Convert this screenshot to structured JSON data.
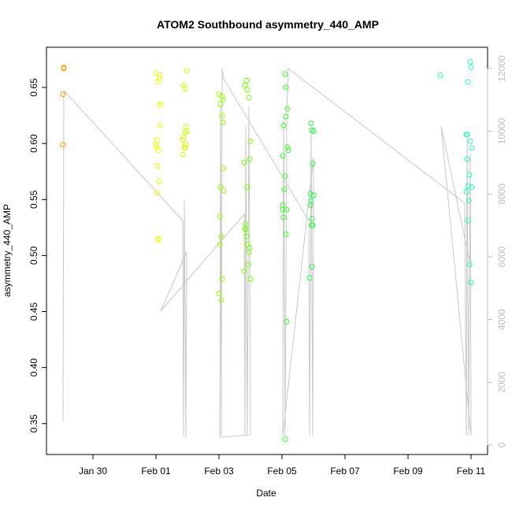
{
  "chart_data": {
    "type": "scatter",
    "title": "ATOM2 Southbound asymmetry_440_AMP",
    "xlabel": "Date",
    "ylabel": "asymmetry_440_AMP",
    "x_ticks": [
      "Jan 30",
      "Feb 01",
      "Feb 03",
      "Feb 05",
      "Feb 07",
      "Feb 09",
      "Feb 11"
    ],
    "x_tick_dates": [
      "01-30 00:00",
      "02-01 00:00",
      "02-03 00:00",
      "02-05 00:00",
      "02-07 00:00",
      "02-09 00:00",
      "02-11 00:00"
    ],
    "xlim": [
      "01-28 12:36",
      "02-11 12:36"
    ],
    "y_ticks": [
      "0.35",
      "0.40",
      "0.45",
      "0.50",
      "0.55",
      "0.60",
      "0.65"
    ],
    "ylim": [
      0.3224,
      0.6859
    ],
    "y2_ticks": [
      "0",
      "2000",
      "4000",
      "6000",
      "8000",
      "10000",
      "12000"
    ],
    "y2lim": [
      -301,
      12678
    ],
    "grid": false,
    "point_groups": [
      {
        "color": "#FF9900",
        "points": [
          [
            "01-29 01:48",
            0.668
          ],
          [
            "01-29 01:48",
            0.667
          ],
          [
            "01-29 01:12",
            0.644
          ],
          [
            "01-29 01:12",
            0.599
          ]
        ]
      },
      {
        "color": "#EEFF00",
        "points": [
          [
            "02-01 00:00",
            0.663
          ],
          [
            "02-01 03:00",
            0.661
          ],
          [
            "02-01 02:24",
            0.658
          ],
          [
            "02-01 01:12",
            0.655
          ],
          [
            "02-01 03:00",
            0.635
          ],
          [
            "02-01 03:36",
            0.635
          ],
          [
            "02-01 03:00",
            0.616
          ],
          [
            "02-01 00:36",
            0.603
          ],
          [
            "02-01 00:00",
            0.599
          ],
          [
            "02-01 00:36",
            0.597
          ],
          [
            "02-01 01:48",
            0.594
          ],
          [
            "02-01 01:12",
            0.58
          ],
          [
            "02-01 02:24",
            0.566
          ],
          [
            "02-01 00:36",
            0.556
          ],
          [
            "02-01 01:48",
            0.515
          ],
          [
            "02-01 01:48",
            0.514
          ]
        ]
      },
      {
        "color": "#D4FF00",
        "points": [
          [
            "02-01 23:24",
            0.665
          ],
          [
            "02-01 21:00",
            0.652
          ],
          [
            "02-01 22:12",
            0.649
          ],
          [
            "02-01 22:48",
            0.615
          ],
          [
            "02-01 23:24",
            0.611
          ],
          [
            "02-01 22:12",
            0.61
          ],
          [
            "02-01 21:00",
            0.606
          ],
          [
            "02-01 20:24",
            0.603
          ],
          [
            "02-01 22:48",
            0.599
          ],
          [
            "02-01 21:36",
            0.597
          ],
          [
            "02-01 22:12",
            0.596
          ],
          [
            "02-01 20:24",
            0.59
          ]
        ]
      },
      {
        "color": "#99FF00",
        "points": [
          [
            "02-03 00:00",
            0.644
          ],
          [
            "02-03 02:24",
            0.642
          ],
          [
            "02-03 03:00",
            0.639
          ],
          [
            "02-03 01:12",
            0.635
          ],
          [
            "02-03 02:24",
            0.625
          ],
          [
            "02-03 03:00",
            0.619
          ],
          [
            "02-03 03:36",
            0.578
          ],
          [
            "02-03 01:12",
            0.561
          ],
          [
            "02-03 03:36",
            0.558
          ],
          [
            "02-03 00:36",
            0.535
          ],
          [
            "02-03 01:48",
            0.517
          ],
          [
            "02-03 00:36",
            0.51
          ],
          [
            "02-03 02:24",
            0.479
          ],
          [
            "02-03 00:00",
            0.466
          ],
          [
            "02-03 01:48",
            0.46
          ]
        ]
      },
      {
        "color": "#77FF00",
        "points": [
          [
            "02-03 21:00",
            0.656
          ],
          [
            "02-03 19:48",
            0.652
          ],
          [
            "02-03 21:36",
            0.648
          ],
          [
            "02-03 22:48",
            0.641
          ],
          [
            "02-04 00:00",
            0.602
          ],
          [
            "02-03 23:24",
            0.586
          ],
          [
            "02-03 19:12",
            0.583
          ],
          [
            "02-03 21:36",
            0.561
          ],
          [
            "02-03 20:24",
            0.528
          ],
          [
            "02-03 19:48",
            0.524
          ],
          [
            "02-03 20:24",
            0.523
          ],
          [
            "02-03 21:00",
            0.517
          ],
          [
            "02-03 21:36",
            0.51
          ],
          [
            "02-03 23:24",
            0.507
          ],
          [
            "02-03 22:48",
            0.503
          ],
          [
            "02-03 22:12",
            0.492
          ],
          [
            "02-03 19:12",
            0.486
          ],
          [
            "02-04 00:00",
            0.479
          ]
        ]
      },
      {
        "color": "#33FF22",
        "points": [
          [
            "02-05 02:24",
            0.662
          ],
          [
            "02-05 03:00",
            0.65
          ],
          [
            "02-05 04:12",
            0.631
          ],
          [
            "02-05 03:00",
            0.624
          ],
          [
            "02-05 01:12",
            0.616
          ],
          [
            "02-05 00:36",
            0.589
          ],
          [
            "02-05 04:12",
            0.597
          ],
          [
            "02-05 04:48",
            0.594
          ],
          [
            "02-05 02:24",
            0.571
          ],
          [
            "02-05 01:48",
            0.559
          ],
          [
            "02-05 00:36",
            0.545
          ],
          [
            "02-05 00:36",
            0.541
          ],
          [
            "02-05 03:36",
            0.541
          ],
          [
            "02-05 01:12",
            0.534
          ],
          [
            "02-05 03:00",
            0.519
          ],
          [
            "02-05 03:36",
            0.441
          ],
          [
            "02-05 02:24",
            0.336
          ]
        ]
      },
      {
        "color": "#22FF44",
        "points": [
          [
            "02-05 22:12",
            0.618
          ],
          [
            "02-05 22:48",
            0.612
          ],
          [
            "02-06 00:00",
            0.611
          ],
          [
            "02-05 23:24",
            0.582
          ],
          [
            "02-05 21:36",
            0.555
          ],
          [
            "02-06 00:00",
            0.554
          ],
          [
            "02-05 22:12",
            0.549
          ],
          [
            "02-05 21:36",
            0.545
          ],
          [
            "02-05 22:48",
            0.533
          ],
          [
            "02-05 23:24",
            0.527
          ],
          [
            "02-05 22:48",
            0.527
          ],
          [
            "02-05 22:48",
            0.49
          ],
          [
            "02-05 21:00",
            0.48
          ]
        ]
      },
      {
        "color": "#22FFBB",
        "points": [
          [
            "02-10 00:36",
            0.661
          ],
          [
            "02-10 23:24",
            0.673
          ],
          [
            "02-11 00:00",
            0.668
          ],
          [
            "02-10 21:36",
            0.655
          ],
          [
            "02-10 20:24",
            0.608
          ],
          [
            "02-10 21:00",
            0.608
          ],
          [
            "02-10 23:24",
            0.602
          ],
          [
            "02-11 00:36",
            0.596
          ],
          [
            "02-10 21:00",
            0.586
          ],
          [
            "02-10 22:48",
            0.572
          ],
          [
            "02-10 21:36",
            0.562
          ],
          [
            "02-11 00:36",
            0.561
          ],
          [
            "02-10 20:24",
            0.557
          ],
          [
            "02-10 22:12",
            0.549
          ],
          [
            "02-10 21:36",
            0.531
          ],
          [
            "02-10 22:48",
            0.492
          ],
          [
            "02-11 00:00",
            0.476
          ]
        ]
      }
    ],
    "line_series": {
      "axis": "right",
      "color": "#c8c8c8",
      "points": [
        [
          "01-29 01:12",
          753
        ],
        [
          "01-29 01:48",
          11297
        ],
        [
          "02-01 20:24",
          7155
        ],
        [
          "02-01 21:00",
          251
        ],
        [
          "02-01 21:36",
          7782
        ],
        [
          "02-01 22:48",
          251
        ],
        [
          "02-01 23:24",
          6151
        ],
        [
          "02-01 03:36",
          4268
        ],
        [
          "02-03 19:12",
          7356
        ],
        [
          "02-03 19:48",
          301
        ],
        [
          "02-03 20:24",
          10167
        ],
        [
          "02-03 21:36",
          301
        ],
        [
          "02-03 22:48",
          10795
        ],
        [
          "02-04 00:00",
          326
        ],
        [
          "02-03 00:36",
          251
        ],
        [
          "02-03 01:12",
          10870
        ],
        [
          "02-03 01:48",
          301
        ],
        [
          "02-03 02:24",
          12000
        ],
        [
          "02-03 03:36",
          11674
        ],
        [
          "02-05 20:24",
          7155
        ],
        [
          "02-05 21:00",
          301
        ],
        [
          "02-05 22:12",
          10042
        ],
        [
          "02-05 23:24",
          301
        ],
        [
          "02-06 00:00",
          9163
        ],
        [
          "02-05 00:36",
          301
        ],
        [
          "02-05 01:12",
          10544
        ],
        [
          "02-05 02:24",
          301
        ],
        [
          "02-05 03:36",
          10544
        ],
        [
          "02-05 04:48",
          12000
        ],
        [
          "02-10 19:12",
          7707
        ],
        [
          "02-10 20:24",
          301
        ],
        [
          "02-10 21:00",
          9916
        ],
        [
          "02-10 22:12",
          301
        ],
        [
          "02-10 23:24",
          9289
        ],
        [
          "02-11 00:00",
          301
        ],
        [
          "02-10 01:12",
          10167
        ],
        [
          "02-10 23:24",
          5774
        ]
      ]
    }
  }
}
